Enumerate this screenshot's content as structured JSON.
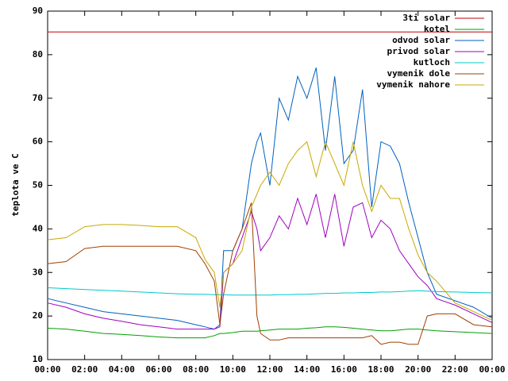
{
  "chart_data": {
    "type": "line",
    "y_label": "teplota ve C",
    "x": [
      0,
      1,
      2,
      3,
      4,
      5,
      6,
      7,
      8,
      8.5,
      9,
      9.3,
      9.5,
      10,
      10.5,
      11,
      11.3,
      11.5,
      12,
      12.5,
      13,
      13.5,
      14,
      14.5,
      15,
      15.5,
      16,
      16.5,
      17,
      17.5,
      18,
      18.5,
      19,
      19.5,
      20,
      20.5,
      21,
      22,
      23,
      24
    ],
    "xlim": [
      0,
      24
    ],
    "xticks": [
      {
        "value": 0,
        "label": "00:00"
      },
      {
        "value": 2,
        "label": "02:00"
      },
      {
        "value": 4,
        "label": "04:00"
      },
      {
        "value": 6,
        "label": "06:00"
      },
      {
        "value": 8,
        "label": "08:00"
      },
      {
        "value": 10,
        "label": "10:00"
      },
      {
        "value": 12,
        "label": "12:00"
      },
      {
        "value": 14,
        "label": "14:00"
      },
      {
        "value": 16,
        "label": "16:00"
      },
      {
        "value": 18,
        "label": "18:00"
      },
      {
        "value": 20,
        "label": "20:00"
      },
      {
        "value": 22,
        "label": "22:00"
      },
      {
        "value": 24,
        "label": "00:00"
      }
    ],
    "ylim": [
      10,
      90
    ],
    "yticks": [
      10,
      20,
      30,
      40,
      50,
      60,
      70,
      80,
      90
    ],
    "legend": "top right",
    "series": [
      {
        "name": "3ti solar",
        "color": "#c00000",
        "values": [
          85.2,
          85.2,
          85.2,
          85.2,
          85.2,
          85.2,
          85.2,
          85.2,
          85.2,
          85.2,
          85.2,
          85.2,
          85.2,
          85.2,
          85.2,
          85.2,
          85.2,
          85.2,
          85.2,
          85.2,
          85.2,
          85.2,
          85.2,
          85.2,
          85.2,
          85.2,
          85.2,
          85.2,
          85.2,
          85.2,
          85.2,
          85.2,
          85.2,
          85.2,
          85.2,
          85.2,
          85.2,
          85.2,
          85.2,
          85.2
        ]
      },
      {
        "name": "kotel",
        "color": "#00a000",
        "values": [
          17.2,
          17,
          16.5,
          16,
          15.8,
          15.5,
          15.2,
          15,
          15,
          15,
          15.5,
          16,
          16,
          16.2,
          16.5,
          16.5,
          16.5,
          16.6,
          16.8,
          17,
          17,
          17,
          17.2,
          17.3,
          17.5,
          17.5,
          17.4,
          17.2,
          17,
          16.8,
          16.6,
          16.6,
          16.8,
          17,
          17,
          16.8,
          16.6,
          16.4,
          16.2,
          16
        ]
      },
      {
        "name": "odvod solar",
        "color": "#0060c0",
        "values": [
          24,
          23,
          22,
          21,
          20.5,
          20,
          19.5,
          19,
          18,
          17.5,
          17,
          18,
          35,
          35,
          40,
          55,
          60,
          62,
          50,
          70,
          65,
          75,
          70,
          77,
          58,
          75,
          55,
          58,
          72,
          45,
          60,
          59,
          55,
          46,
          38,
          30,
          25,
          23.5,
          22,
          19.5
        ]
      },
      {
        "name": "privod solar",
        "color": "#a000c0",
        "values": [
          23,
          22,
          20.5,
          19.5,
          18.8,
          18,
          17.5,
          17,
          17,
          17,
          17,
          17.5,
          30,
          32,
          38,
          44,
          40,
          35,
          38,
          43,
          40,
          47,
          41,
          48,
          38,
          48,
          36,
          45,
          46,
          38,
          42,
          40,
          35,
          32,
          29,
          27,
          24,
          22.5,
          20.5,
          18.5
        ]
      },
      {
        "name": "kutloch",
        "color": "#00c8c8",
        "values": [
          26.5,
          26.3,
          26.1,
          25.9,
          25.7,
          25.5,
          25.3,
          25.1,
          25,
          25,
          24.9,
          24.9,
          24.9,
          24.8,
          24.8,
          24.8,
          24.8,
          24.8,
          24.8,
          24.9,
          24.9,
          25,
          25,
          25.1,
          25.2,
          25.2,
          25.3,
          25.3,
          25.4,
          25.4,
          25.5,
          25.5,
          25.6,
          25.7,
          25.8,
          25.7,
          25.6,
          25.5,
          25.4,
          25.3
        ]
      },
      {
        "name": "vymenik dole",
        "color": "#a04000",
        "values": [
          32,
          32.5,
          35.5,
          36,
          36,
          36,
          36,
          36,
          35,
          32,
          28,
          18,
          25,
          35,
          40,
          46,
          20,
          16,
          14.5,
          14.5,
          15,
          15,
          15,
          15,
          15,
          15,
          15,
          15,
          15,
          15.5,
          13.5,
          14,
          14,
          13.5,
          13.5,
          20,
          20.5,
          20.5,
          18,
          17.5
        ]
      },
      {
        "name": "vymenik nahore",
        "color": "#c8a800",
        "values": [
          37.5,
          38,
          40.5,
          41,
          41,
          40.8,
          40.5,
          40.5,
          38,
          33,
          30,
          22,
          30,
          32,
          35,
          45,
          48,
          50,
          53,
          50,
          55,
          58,
          60,
          52,
          60,
          55,
          50,
          60,
          50,
          44,
          50,
          47,
          47,
          40,
          34,
          30,
          28,
          23,
          21,
          19
        ]
      }
    ]
  }
}
